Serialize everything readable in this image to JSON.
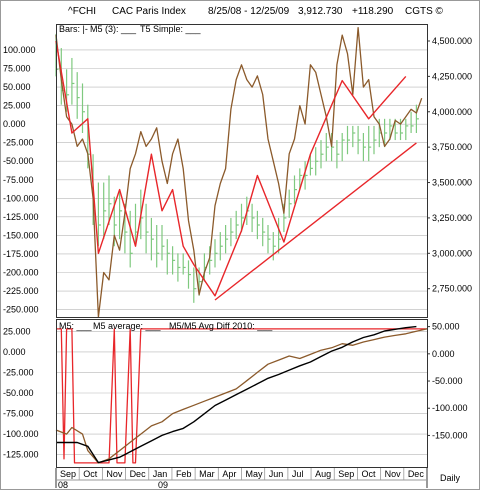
{
  "header": {
    "symbol": "^FCHI",
    "name": "CAC Paris Index",
    "range": "8/25/08 - 12/25/09",
    "last": "3,912.730",
    "change": "+118.290",
    "credit": "CGTS ©"
  },
  "colors": {
    "bars": "#7fc97f",
    "m5": "#8b5a2b",
    "t5": "#e8262a",
    "m5_average": "#000000",
    "avg_diff": "#e8262a",
    "grid": "#b8b8b8"
  },
  "chart_data": [
    {
      "type": "ohlc+line",
      "legend": [
        "Bars: |-",
        "M5 (3): ___",
        "T5 Simple: ___"
      ],
      "left_axis": {
        "ticks": [
          100,
          75,
          50,
          25,
          0,
          -25,
          -50,
          -75,
          -100,
          -125,
          -150,
          -175,
          -200,
          -225,
          -250
        ],
        "tick_labels": [
          "100.000",
          "75.000",
          "50.000",
          "25.000",
          "0.000",
          "-25.000",
          "-50.000",
          "-75.000",
          "-100.000",
          "-125.000",
          "-150.000",
          "-175.000",
          "-200.000",
          "-225.000",
          "-250.000"
        ],
        "range": [
          -260,
          135
        ]
      },
      "right_axis": {
        "ticks": [
          4500,
          4250,
          4000,
          3750,
          3500,
          3250,
          3000,
          2750
        ],
        "tick_labels": [
          "4,500.000",
          "4,250.000",
          "4,000.000",
          "3,750.000",
          "3,500.000",
          "3,250.000",
          "3,000.000",
          "2,750.000"
        ],
        "range": [
          2550,
          4620
        ]
      },
      "x_range": [
        0,
        70
      ],
      "bars": [
        [
          0,
          4300,
          4550,
          4250
        ],
        [
          1,
          4150,
          4450,
          4050
        ],
        [
          2,
          4120,
          4300,
          4000
        ],
        [
          3,
          4200,
          4380,
          4050
        ],
        [
          4,
          4100,
          4280,
          3950
        ],
        [
          5,
          4000,
          4200,
          3850
        ],
        [
          6,
          3700,
          4050,
          3600
        ],
        [
          7,
          3300,
          3700,
          3200
        ],
        [
          8,
          3200,
          3500,
          3050
        ],
        [
          9,
          3300,
          3500,
          3100
        ],
        [
          10,
          3350,
          3550,
          3200
        ],
        [
          11,
          3200,
          3400,
          3050
        ],
        [
          12,
          3300,
          3450,
          3100
        ],
        [
          13,
          3150,
          3350,
          3000
        ],
        [
          14,
          3000,
          3300,
          2900
        ],
        [
          15,
          3150,
          3350,
          3050
        ],
        [
          16,
          3250,
          3450,
          3100
        ],
        [
          17,
          3150,
          3350,
          3000
        ],
        [
          18,
          3100,
          3250,
          2950
        ],
        [
          19,
          3000,
          3200,
          2900
        ],
        [
          20,
          3050,
          3200,
          2950
        ],
        [
          21,
          3000,
          3100,
          2850
        ],
        [
          22,
          2950,
          3050,
          2850
        ],
        [
          23,
          2900,
          3000,
          2800
        ],
        [
          24,
          2900,
          3000,
          2850
        ],
        [
          25,
          2850,
          2950,
          2750
        ],
        [
          26,
          2750,
          2900,
          2650
        ],
        [
          27,
          2800,
          2900,
          2700
        ],
        [
          28,
          2900,
          3000,
          2800
        ],
        [
          29,
          2950,
          3050,
          2850
        ],
        [
          30,
          3000,
          3100,
          2900
        ],
        [
          31,
          3050,
          3150,
          2950
        ],
        [
          32,
          3100,
          3200,
          3000
        ],
        [
          33,
          3150,
          3250,
          3050
        ],
        [
          34,
          3200,
          3300,
          3100
        ],
        [
          35,
          3250,
          3350,
          3150
        ],
        [
          36,
          3300,
          3400,
          3200
        ],
        [
          37,
          3250,
          3350,
          3150
        ],
        [
          38,
          3200,
          3300,
          3100
        ],
        [
          39,
          3150,
          3250,
          3050
        ],
        [
          40,
          3100,
          3200,
          3000
        ],
        [
          41,
          3050,
          3150,
          2950
        ],
        [
          42,
          3100,
          3250,
          3000
        ],
        [
          43,
          3250,
          3350,
          3150
        ],
        [
          44,
          3350,
          3450,
          3250
        ],
        [
          45,
          3450,
          3550,
          3350
        ],
        [
          46,
          3550,
          3600,
          3450
        ],
        [
          47,
          3550,
          3650,
          3450
        ],
        [
          48,
          3600,
          3700,
          3550
        ],
        [
          49,
          3650,
          3750,
          3550
        ],
        [
          50,
          3700,
          3800,
          3600
        ],
        [
          51,
          3750,
          3850,
          3650
        ],
        [
          52,
          3750,
          3850,
          3650
        ],
        [
          53,
          3700,
          3800,
          3600
        ],
        [
          54,
          3800,
          3850,
          3650
        ],
        [
          55,
          3800,
          3900,
          3700
        ],
        [
          56,
          3850,
          3900,
          3750
        ],
        [
          57,
          3800,
          3900,
          3700
        ],
        [
          58,
          3750,
          3850,
          3650
        ],
        [
          59,
          3750,
          3900,
          3650
        ],
        [
          60,
          3800,
          3900,
          3700
        ],
        [
          61,
          3850,
          3950,
          3750
        ],
        [
          62,
          3850,
          3950,
          3750
        ],
        [
          63,
          3900,
          3950,
          3800
        ],
        [
          64,
          3850,
          3950,
          3800
        ],
        [
          65,
          3850,
          3950,
          3800
        ],
        [
          66,
          3900,
          3950,
          3800
        ],
        [
          67,
          3900,
          4000,
          3850
        ],
        [
          68,
          3950,
          4050,
          3850
        ]
      ],
      "m5": [
        [
          0,
          120
        ],
        [
          1,
          60
        ],
        [
          2,
          10
        ],
        [
          3,
          0
        ],
        [
          4,
          -30
        ],
        [
          5,
          -20
        ],
        [
          6,
          -40
        ],
        [
          7,
          -100
        ],
        [
          8,
          -260
        ],
        [
          9,
          -200
        ],
        [
          10,
          -210
        ],
        [
          11,
          -150
        ],
        [
          12,
          -170
        ],
        [
          13,
          -120
        ],
        [
          14,
          -60
        ],
        [
          15,
          -40
        ],
        [
          16,
          -10
        ],
        [
          17,
          -30
        ],
        [
          18,
          -20
        ],
        [
          19,
          -5
        ],
        [
          20,
          -50
        ],
        [
          21,
          -80
        ],
        [
          22,
          -40
        ],
        [
          23,
          -20
        ],
        [
          24,
          -60
        ],
        [
          25,
          -130
        ],
        [
          26,
          -170
        ],
        [
          27,
          -230
        ],
        [
          28,
          -200
        ],
        [
          29,
          -180
        ],
        [
          30,
          -110
        ],
        [
          31,
          -80
        ],
        [
          32,
          -60
        ],
        [
          33,
          20
        ],
        [
          34,
          60
        ],
        [
          35,
          80
        ],
        [
          36,
          60
        ],
        [
          37,
          50
        ],
        [
          38,
          65
        ],
        [
          39,
          40
        ],
        [
          40,
          -20
        ],
        [
          41,
          -50
        ],
        [
          42,
          -80
        ],
        [
          43,
          -120
        ],
        [
          44,
          -40
        ],
        [
          45,
          -20
        ],
        [
          46,
          25
        ],
        [
          47,
          0
        ],
        [
          48,
          80
        ],
        [
          49,
          70
        ],
        [
          50,
          40
        ],
        [
          51,
          10
        ],
        [
          52,
          -30
        ],
        [
          53,
          80
        ],
        [
          54,
          120
        ],
        [
          55,
          95
        ],
        [
          56,
          40
        ],
        [
          57,
          130
        ],
        [
          58,
          50
        ],
        [
          59,
          60
        ],
        [
          60,
          10
        ],
        [
          61,
          0
        ],
        [
          62,
          -30
        ],
        [
          63,
          -20
        ],
        [
          64,
          5
        ],
        [
          65,
          0
        ],
        [
          66,
          10
        ],
        [
          67,
          20
        ],
        [
          68,
          15
        ],
        [
          69,
          35
        ]
      ],
      "t5": [
        [
          0,
          4500
        ],
        [
          3,
          3850
        ],
        [
          6,
          3950
        ],
        [
          8,
          3000
        ],
        [
          12,
          3450
        ],
        [
          15,
          3050
        ],
        [
          18,
          3700
        ],
        [
          20,
          3300
        ],
        [
          22,
          3450
        ],
        [
          24,
          3050
        ],
        [
          26,
          2920
        ],
        [
          30,
          2700
        ],
        [
          35,
          3160
        ],
        [
          38,
          3550
        ],
        [
          43,
          3080
        ],
        [
          48,
          3700
        ],
        [
          54,
          4220
        ],
        [
          59,
          3950
        ],
        [
          66,
          4250
        ]
      ],
      "trendline": [
        [
          30,
          2670
        ],
        [
          68,
          3780
        ]
      ]
    },
    {
      "type": "line",
      "legend": [
        "M5: ___",
        "M5 average: ___",
        "M5/M5 Avg Diff 2010: ___"
      ],
      "left_axis": {
        "ticks": [
          25,
          0,
          -25,
          -50,
          -75,
          -100,
          -125
        ],
        "tick_labels": [
          "25.000",
          "0.000",
          "-25.000",
          "-50.000",
          "-75.000",
          "-100.000",
          "-125.000"
        ],
        "range": [
          -140,
          40
        ]
      },
      "right_axis": {
        "ticks": [
          50,
          0,
          -50,
          -100,
          -150
        ],
        "tick_labels": [
          "50.000",
          "0.000",
          "-50.000",
          "-100.000",
          "-150.000"
        ],
        "range": [
          -208,
          64
        ]
      },
      "x_range": [
        0,
        70
      ],
      "m5": [
        [
          0,
          -95
        ],
        [
          2,
          -100
        ],
        [
          3,
          -92
        ],
        [
          5,
          -100
        ],
        [
          6,
          -120
        ],
        [
          8,
          -135
        ],
        [
          10,
          -130
        ],
        [
          12,
          -120
        ],
        [
          14,
          -110
        ],
        [
          16,
          -100
        ],
        [
          18,
          -90
        ],
        [
          20,
          -85
        ],
        [
          22,
          -75
        ],
        [
          24,
          -70
        ],
        [
          26,
          -65
        ],
        [
          28,
          -60
        ],
        [
          30,
          -55
        ],
        [
          32,
          -50
        ],
        [
          34,
          -45
        ],
        [
          36,
          -35
        ],
        [
          38,
          -25
        ],
        [
          40,
          -15
        ],
        [
          42,
          -10
        ],
        [
          44,
          -5
        ],
        [
          46,
          -8
        ],
        [
          48,
          -3
        ],
        [
          50,
          2
        ],
        [
          52,
          5
        ],
        [
          54,
          10
        ],
        [
          56,
          8
        ],
        [
          58,
          12
        ],
        [
          60,
          15
        ],
        [
          62,
          18
        ],
        [
          64,
          20
        ],
        [
          66,
          22
        ],
        [
          68,
          25
        ],
        [
          70,
          28
        ]
      ],
      "m5_average": [
        [
          0,
          -163
        ],
        [
          4,
          -163
        ],
        [
          6,
          -170
        ],
        [
          8,
          -200
        ],
        [
          10,
          -195
        ],
        [
          12,
          -190
        ],
        [
          14,
          -180
        ],
        [
          16,
          -170
        ],
        [
          18,
          -160
        ],
        [
          20,
          -150
        ],
        [
          22,
          -143
        ],
        [
          24,
          -137
        ],
        [
          26,
          -125
        ],
        [
          28,
          -110
        ],
        [
          30,
          -95
        ],
        [
          32,
          -85
        ],
        [
          34,
          -75
        ],
        [
          36,
          -65
        ],
        [
          38,
          -55
        ],
        [
          40,
          -45
        ],
        [
          42,
          -38
        ],
        [
          44,
          -30
        ],
        [
          46,
          -22
        ],
        [
          48,
          -15
        ],
        [
          50,
          -5
        ],
        [
          52,
          5
        ],
        [
          54,
          12
        ],
        [
          56,
          22
        ],
        [
          58,
          30
        ],
        [
          60,
          35
        ],
        [
          62,
          42
        ],
        [
          64,
          45
        ],
        [
          66,
          48
        ],
        [
          68,
          50
        ]
      ],
      "avg_diff": [
        [
          0,
          28
        ],
        [
          1,
          28
        ],
        [
          1.5,
          -130
        ],
        [
          2,
          28
        ],
        [
          3,
          28
        ],
        [
          3.5,
          -135
        ],
        [
          10,
          -135
        ],
        [
          11,
          28
        ],
        [
          11.5,
          -135
        ],
        [
          13,
          -135
        ],
        [
          14,
          28
        ],
        [
          14.5,
          -135
        ],
        [
          15,
          -135
        ],
        [
          16,
          28
        ],
        [
          70,
          28
        ]
      ]
    }
  ],
  "x_axis": {
    "months": [
      "Sep",
      "Oct",
      "Nov",
      "Dec",
      "Jan",
      "Feb",
      "Mar",
      "Apr",
      "May",
      "Jun",
      "Jul",
      "Aug",
      "Sep",
      "Oct",
      "Nov",
      "Dec"
    ],
    "years": [
      "08",
      "09"
    ],
    "period": "Daily"
  }
}
